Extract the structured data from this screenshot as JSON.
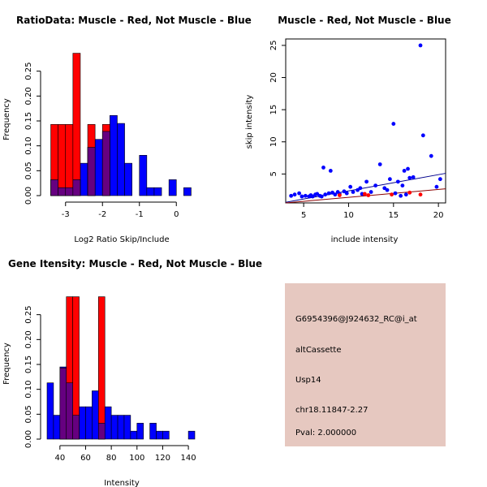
{
  "colors": {
    "muscle": "#ff0000",
    "not_muscle": "#0000ff",
    "overlap": "#660080",
    "info_bg": "#e6c8c0",
    "pval": "#8b0000",
    "fit_muscle": "#8b0000",
    "fit_not_muscle": "#00008b"
  },
  "chart_data": [
    {
      "type": "bar",
      "title": "RatioData: Muscle - Red, Not Muscle - Blue",
      "xlabel": "Log2 Ratio Skip/Include",
      "ylabel": "Frequency",
      "xlim": [
        -3.5,
        0.5
      ],
      "ylim": [
        0,
        0.3
      ],
      "xticks": [
        -3,
        -2,
        -1,
        0
      ],
      "yticks": [
        0.0,
        0.05,
        0.1,
        0.15,
        0.2,
        0.25
      ],
      "yticklabels": [
        "0.00",
        "0.05",
        "0.10",
        "0.15",
        "0.20",
        "0.25"
      ],
      "bin_width": 0.2,
      "series": [
        {
          "name": "Not Muscle",
          "color": "blue",
          "bins": [
            [
              -3.4,
              0.032
            ],
            [
              -3.2,
              0.016
            ],
            [
              -3.0,
              0.016
            ],
            [
              -2.8,
              0.032
            ],
            [
              -2.6,
              0.065
            ],
            [
              -2.4,
              0.097
            ],
            [
              -2.2,
              0.113
            ],
            [
              -2.0,
              0.129
            ],
            [
              -1.8,
              0.161
            ],
            [
              -1.6,
              0.145
            ],
            [
              -1.4,
              0.065
            ],
            [
              -1.2,
              0.0
            ],
            [
              -1.0,
              0.081
            ],
            [
              -0.8,
              0.016
            ],
            [
              -0.6,
              0.016
            ],
            [
              -0.4,
              0.0
            ],
            [
              -0.2,
              0.032
            ],
            [
              0.0,
              0.0
            ],
            [
              0.2,
              0.016
            ]
          ]
        },
        {
          "name": "Muscle",
          "color": "red",
          "bins": [
            [
              -3.4,
              0.143
            ],
            [
              -3.2,
              0.143
            ],
            [
              -3.0,
              0.143
            ],
            [
              -2.8,
              0.286
            ],
            [
              -2.4,
              0.143
            ],
            [
              -2.0,
              0.143
            ]
          ]
        }
      ]
    },
    {
      "type": "scatter",
      "title": "Muscle - Red, Not Muscle - Blue",
      "xlabel": "include intensity",
      "ylabel": "skip intensity",
      "xlim": [
        3,
        20.8
      ],
      "ylim": [
        0.5,
        26
      ],
      "xticks": [
        5,
        10,
        15,
        20
      ],
      "yticks": [
        5,
        10,
        15,
        20,
        25
      ],
      "series": [
        {
          "name": "Not Muscle",
          "color": "blue",
          "points": [
            [
              3.6,
              1.6
            ],
            [
              4.0,
              1.8
            ],
            [
              4.5,
              2.0
            ],
            [
              4.8,
              1.5
            ],
            [
              5.2,
              1.6
            ],
            [
              5.6,
              1.5
            ],
            [
              5.8,
              1.7
            ],
            [
              6.0,
              1.5
            ],
            [
              6.3,
              1.8
            ],
            [
              6.5,
              1.9
            ],
            [
              6.8,
              1.6
            ],
            [
              7.0,
              1.5
            ],
            [
              7.2,
              6.0
            ],
            [
              7.4,
              1.8
            ],
            [
              7.8,
              2.0
            ],
            [
              8.0,
              5.5
            ],
            [
              8.2,
              2.1
            ],
            [
              8.5,
              1.8
            ],
            [
              8.8,
              2.2
            ],
            [
              9.0,
              1.9
            ],
            [
              9.5,
              2.3
            ],
            [
              9.8,
              2.0
            ],
            [
              10.2,
              3.0
            ],
            [
              10.5,
              2.2
            ],
            [
              11.0,
              2.5
            ],
            [
              11.3,
              2.8
            ],
            [
              11.5,
              1.9
            ],
            [
              12.0,
              3.8
            ],
            [
              12.5,
              2.2
            ],
            [
              13.0,
              3.2
            ],
            [
              13.5,
              6.5
            ],
            [
              14.0,
              2.8
            ],
            [
              14.3,
              2.5
            ],
            [
              14.6,
              4.2
            ],
            [
              15.0,
              12.8
            ],
            [
              15.2,
              2.0
            ],
            [
              15.5,
              3.8
            ],
            [
              15.8,
              1.6
            ],
            [
              16.0,
              3.2
            ],
            [
              16.2,
              5.5
            ],
            [
              16.4,
              1.8
            ],
            [
              16.6,
              5.8
            ],
            [
              16.8,
              4.4
            ],
            [
              17.2,
              4.5
            ],
            [
              18.0,
              25.0
            ],
            [
              18.3,
              11.0
            ],
            [
              19.2,
              7.8
            ],
            [
              19.8,
              3.0
            ],
            [
              20.2,
              4.2
            ]
          ]
        },
        {
          "name": "Muscle",
          "color": "red",
          "points": [
            [
              9.0,
              1.7
            ],
            [
              11.8,
              1.9
            ],
            [
              12.2,
              1.7
            ],
            [
              14.8,
              1.8
            ],
            [
              16.8,
              2.1
            ],
            [
              18.0,
              1.8
            ]
          ]
        }
      ],
      "fit_lines": [
        {
          "name": "Not Muscle fit",
          "color": "darkblue",
          "x": [
            3,
            20.8
          ],
          "y": [
            0.6,
            5.1
          ]
        },
        {
          "name": "Muscle fit",
          "color": "darkred",
          "x": [
            3,
            20.8
          ],
          "y": [
            0.5,
            2.7
          ]
        }
      ]
    },
    {
      "type": "bar",
      "title": "Gene Itensity: Muscle - Red, Not Muscle - Blue",
      "xlabel": "Intensity",
      "ylabel": "Frequency",
      "xlim": [
        30,
        145
      ],
      "ylim": [
        0,
        0.3
      ],
      "xticks": [
        40,
        60,
        80,
        100,
        120,
        140
      ],
      "yticks": [
        0.0,
        0.05,
        0.1,
        0.15,
        0.2,
        0.25
      ],
      "yticklabels": [
        "0.00",
        "0.05",
        "0.10",
        "0.15",
        "0.20",
        "0.25"
      ],
      "bin_width": 5,
      "series": [
        {
          "name": "Not Muscle",
          "color": "blue",
          "bins": [
            [
              30,
              0.113
            ],
            [
              35,
              0.048
            ],
            [
              40,
              0.145
            ],
            [
              45,
              0.113
            ],
            [
              50,
              0.048
            ],
            [
              55,
              0.065
            ],
            [
              60,
              0.065
            ],
            [
              65,
              0.097
            ],
            [
              70,
              0.032
            ],
            [
              75,
              0.065
            ],
            [
              80,
              0.048
            ],
            [
              85,
              0.048
            ],
            [
              90,
              0.048
            ],
            [
              95,
              0.016
            ],
            [
              100,
              0.032
            ],
            [
              105,
              0.0
            ],
            [
              110,
              0.032
            ],
            [
              115,
              0.016
            ],
            [
              120,
              0.016
            ],
            [
              125,
              0.0
            ],
            [
              130,
              0.0
            ],
            [
              135,
              0.0
            ],
            [
              140,
              0.016
            ]
          ]
        },
        {
          "name": "Muscle",
          "color": "red",
          "bins": [
            [
              40,
              0.143
            ],
            [
              45,
              0.286
            ],
            [
              50,
              0.286
            ],
            [
              70,
              0.286
            ]
          ]
        }
      ]
    }
  ],
  "info_box": {
    "probe": "G6954396@J924632_RC@i_at",
    "event_type": "altCassette",
    "gene": "Usp14",
    "location": "chr18.11847-2.27",
    "pval": "Pval: 2.000000"
  }
}
